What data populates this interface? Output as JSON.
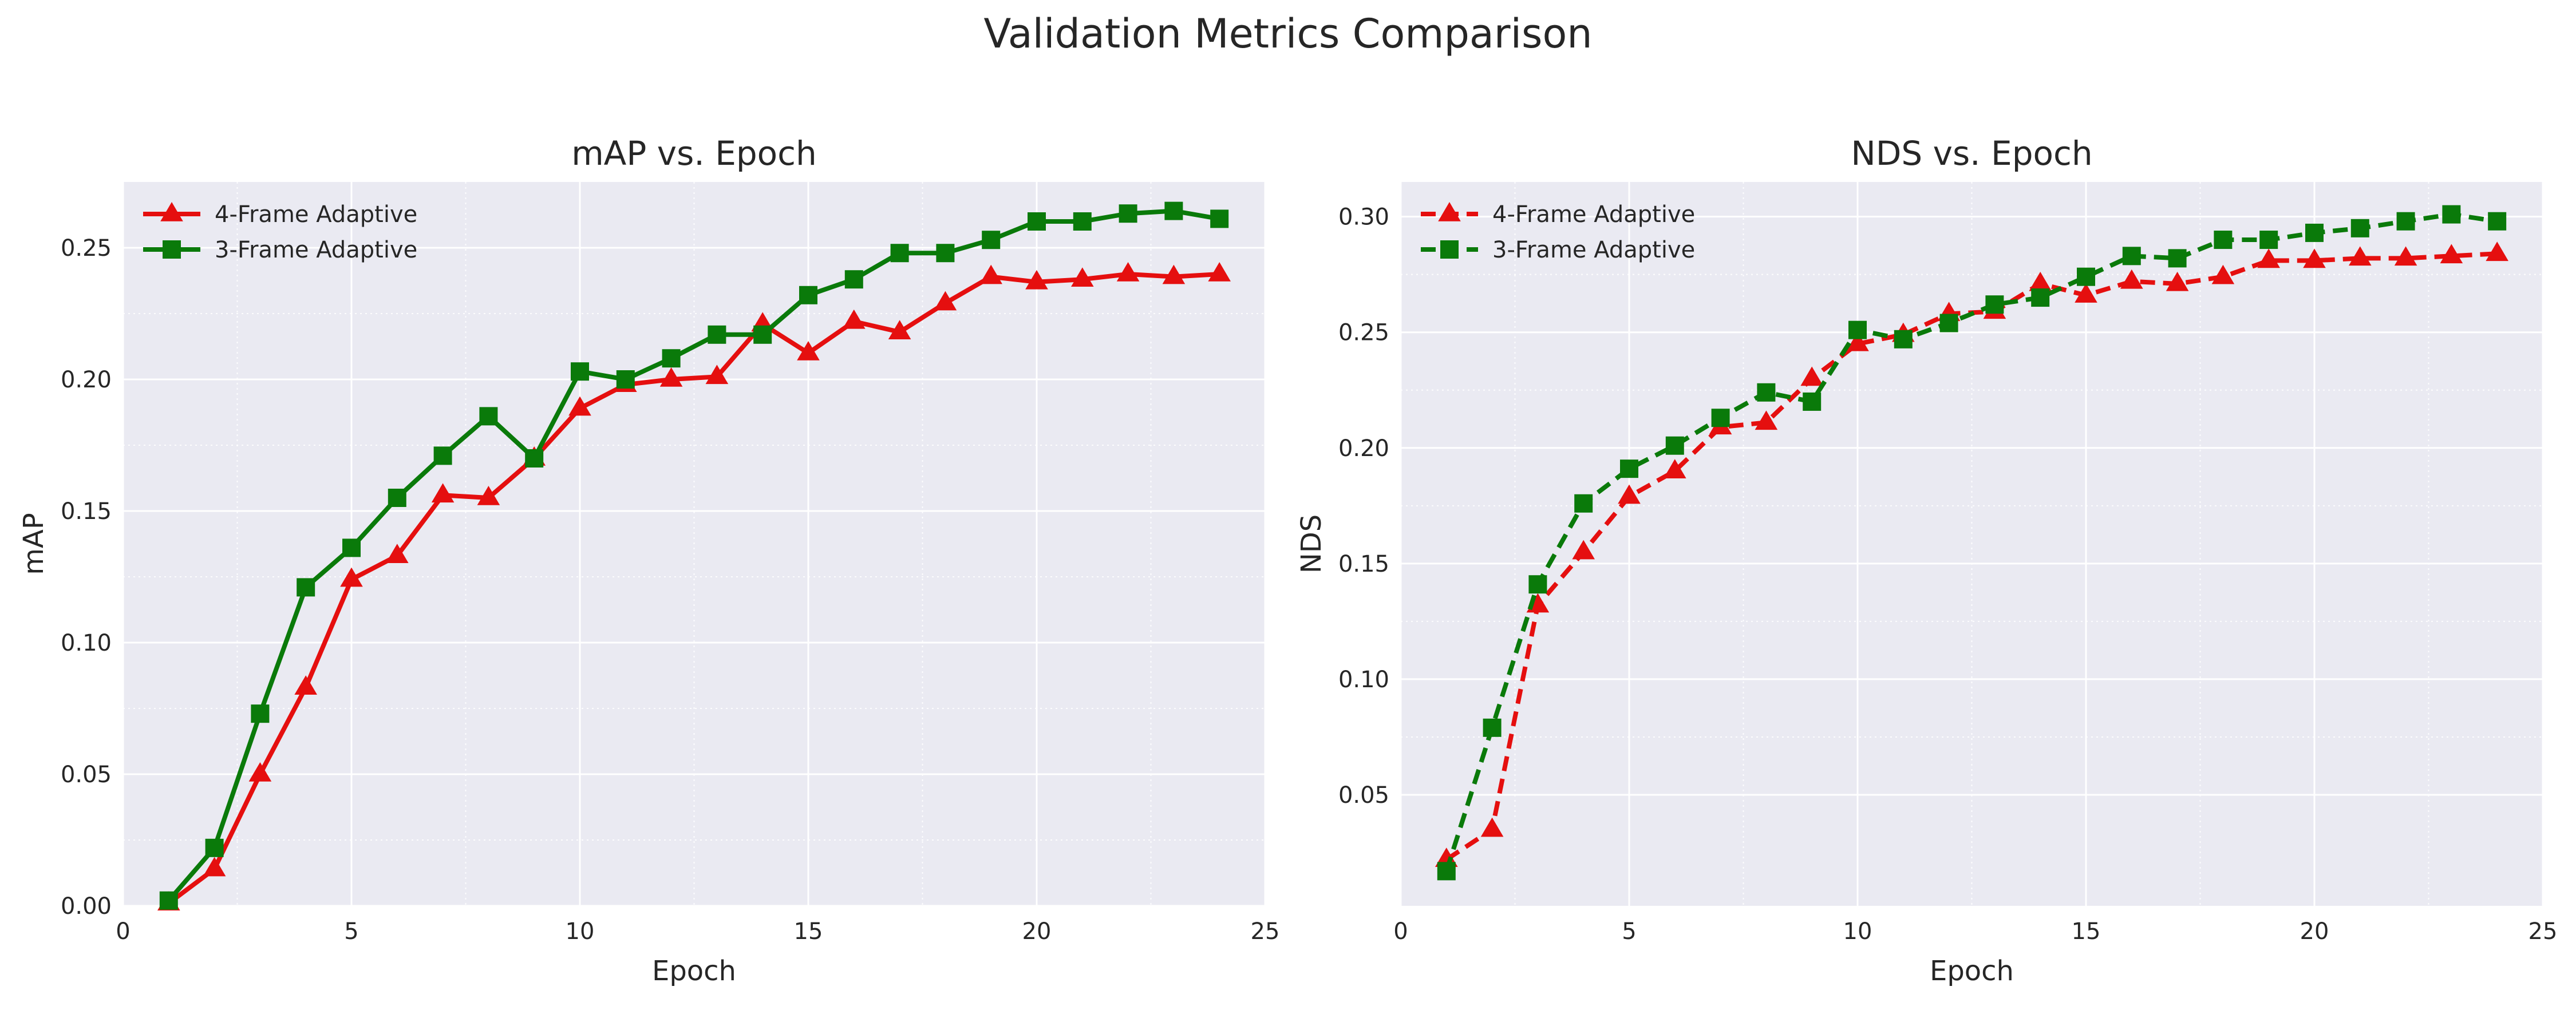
{
  "figure": {
    "title": "Validation Metrics Comparison"
  },
  "colors": {
    "red": "#e50f0f",
    "green": "#0a7a0a",
    "panel_bg": "#eaeaf2",
    "grid": "#ffffff",
    "text": "#262626"
  },
  "chart_data": [
    {
      "type": "line",
      "title": "mAP vs. Epoch",
      "xlabel": "Epoch",
      "ylabel": "mAP",
      "xlim": [
        0,
        25
      ],
      "ylim": [
        0.0,
        0.275
      ],
      "xticks": [
        0,
        5,
        10,
        15,
        20,
        25
      ],
      "yticks": [
        0.0,
        0.05,
        0.1,
        0.15,
        0.2,
        0.25
      ],
      "ytick_labels": [
        "0.00",
        "0.05",
        "0.10",
        "0.15",
        "0.20",
        "0.25"
      ],
      "grid": true,
      "legend": "upper-left",
      "x": [
        1,
        2,
        3,
        4,
        5,
        6,
        7,
        8,
        9,
        10,
        11,
        12,
        13,
        14,
        15,
        16,
        17,
        18,
        19,
        20,
        21,
        22,
        23,
        24
      ],
      "series": [
        {
          "name": "4-Frame Adaptive",
          "color": "#e50f0f",
          "marker": "triangle",
          "linestyle": "solid",
          "values": [
            0.001,
            0.014,
            0.05,
            0.083,
            0.124,
            0.133,
            0.156,
            0.155,
            0.17,
            0.189,
            0.198,
            0.2,
            0.201,
            0.221,
            0.21,
            0.222,
            0.218,
            0.229,
            0.239,
            0.237,
            0.238,
            0.24,
            0.239,
            0.24
          ]
        },
        {
          "name": "3-Frame Adaptive",
          "color": "#0a7a0a",
          "marker": "square",
          "linestyle": "solid",
          "values": [
            0.002,
            0.022,
            0.073,
            0.121,
            0.136,
            0.155,
            0.171,
            0.186,
            0.17,
            0.203,
            0.2,
            0.208,
            0.217,
            0.217,
            0.232,
            0.238,
            0.248,
            0.248,
            0.253,
            0.26,
            0.26,
            0.263,
            0.264,
            0.261
          ]
        }
      ]
    },
    {
      "type": "line",
      "title": "NDS vs. Epoch",
      "xlabel": "Epoch",
      "ylabel": "NDS",
      "xlim": [
        0,
        25
      ],
      "ylim": [
        0.002,
        0.315
      ],
      "xticks": [
        0,
        5,
        10,
        15,
        20,
        25
      ],
      "yticks": [
        0.05,
        0.1,
        0.15,
        0.2,
        0.25,
        0.3
      ],
      "ytick_labels": [
        "0.05",
        "0.10",
        "0.15",
        "0.20",
        "0.25",
        "0.30"
      ],
      "grid": true,
      "legend": "upper-left",
      "x": [
        1,
        2,
        3,
        4,
        5,
        6,
        7,
        8,
        9,
        10,
        11,
        12,
        13,
        14,
        15,
        16,
        17,
        18,
        19,
        20,
        21,
        22,
        23,
        24
      ],
      "series": [
        {
          "name": "4-Frame Adaptive",
          "color": "#e50f0f",
          "marker": "triangle",
          "linestyle": "dashed",
          "values": [
            0.022,
            0.035,
            0.132,
            0.155,
            0.179,
            0.19,
            0.209,
            0.211,
            0.23,
            0.245,
            0.249,
            0.258,
            0.259,
            0.271,
            0.266,
            0.272,
            0.271,
            0.274,
            0.281,
            0.281,
            0.282,
            0.282,
            0.283,
            0.284
          ]
        },
        {
          "name": "3-Frame Adaptive",
          "color": "#0a7a0a",
          "marker": "square",
          "linestyle": "dashed",
          "values": [
            0.017,
            0.079,
            0.141,
            0.176,
            0.191,
            0.201,
            0.213,
            0.224,
            0.22,
            0.251,
            0.247,
            0.254,
            0.262,
            0.265,
            0.274,
            0.283,
            0.282,
            0.29,
            0.29,
            0.293,
            0.295,
            0.298,
            0.301,
            0.298
          ]
        }
      ]
    }
  ]
}
